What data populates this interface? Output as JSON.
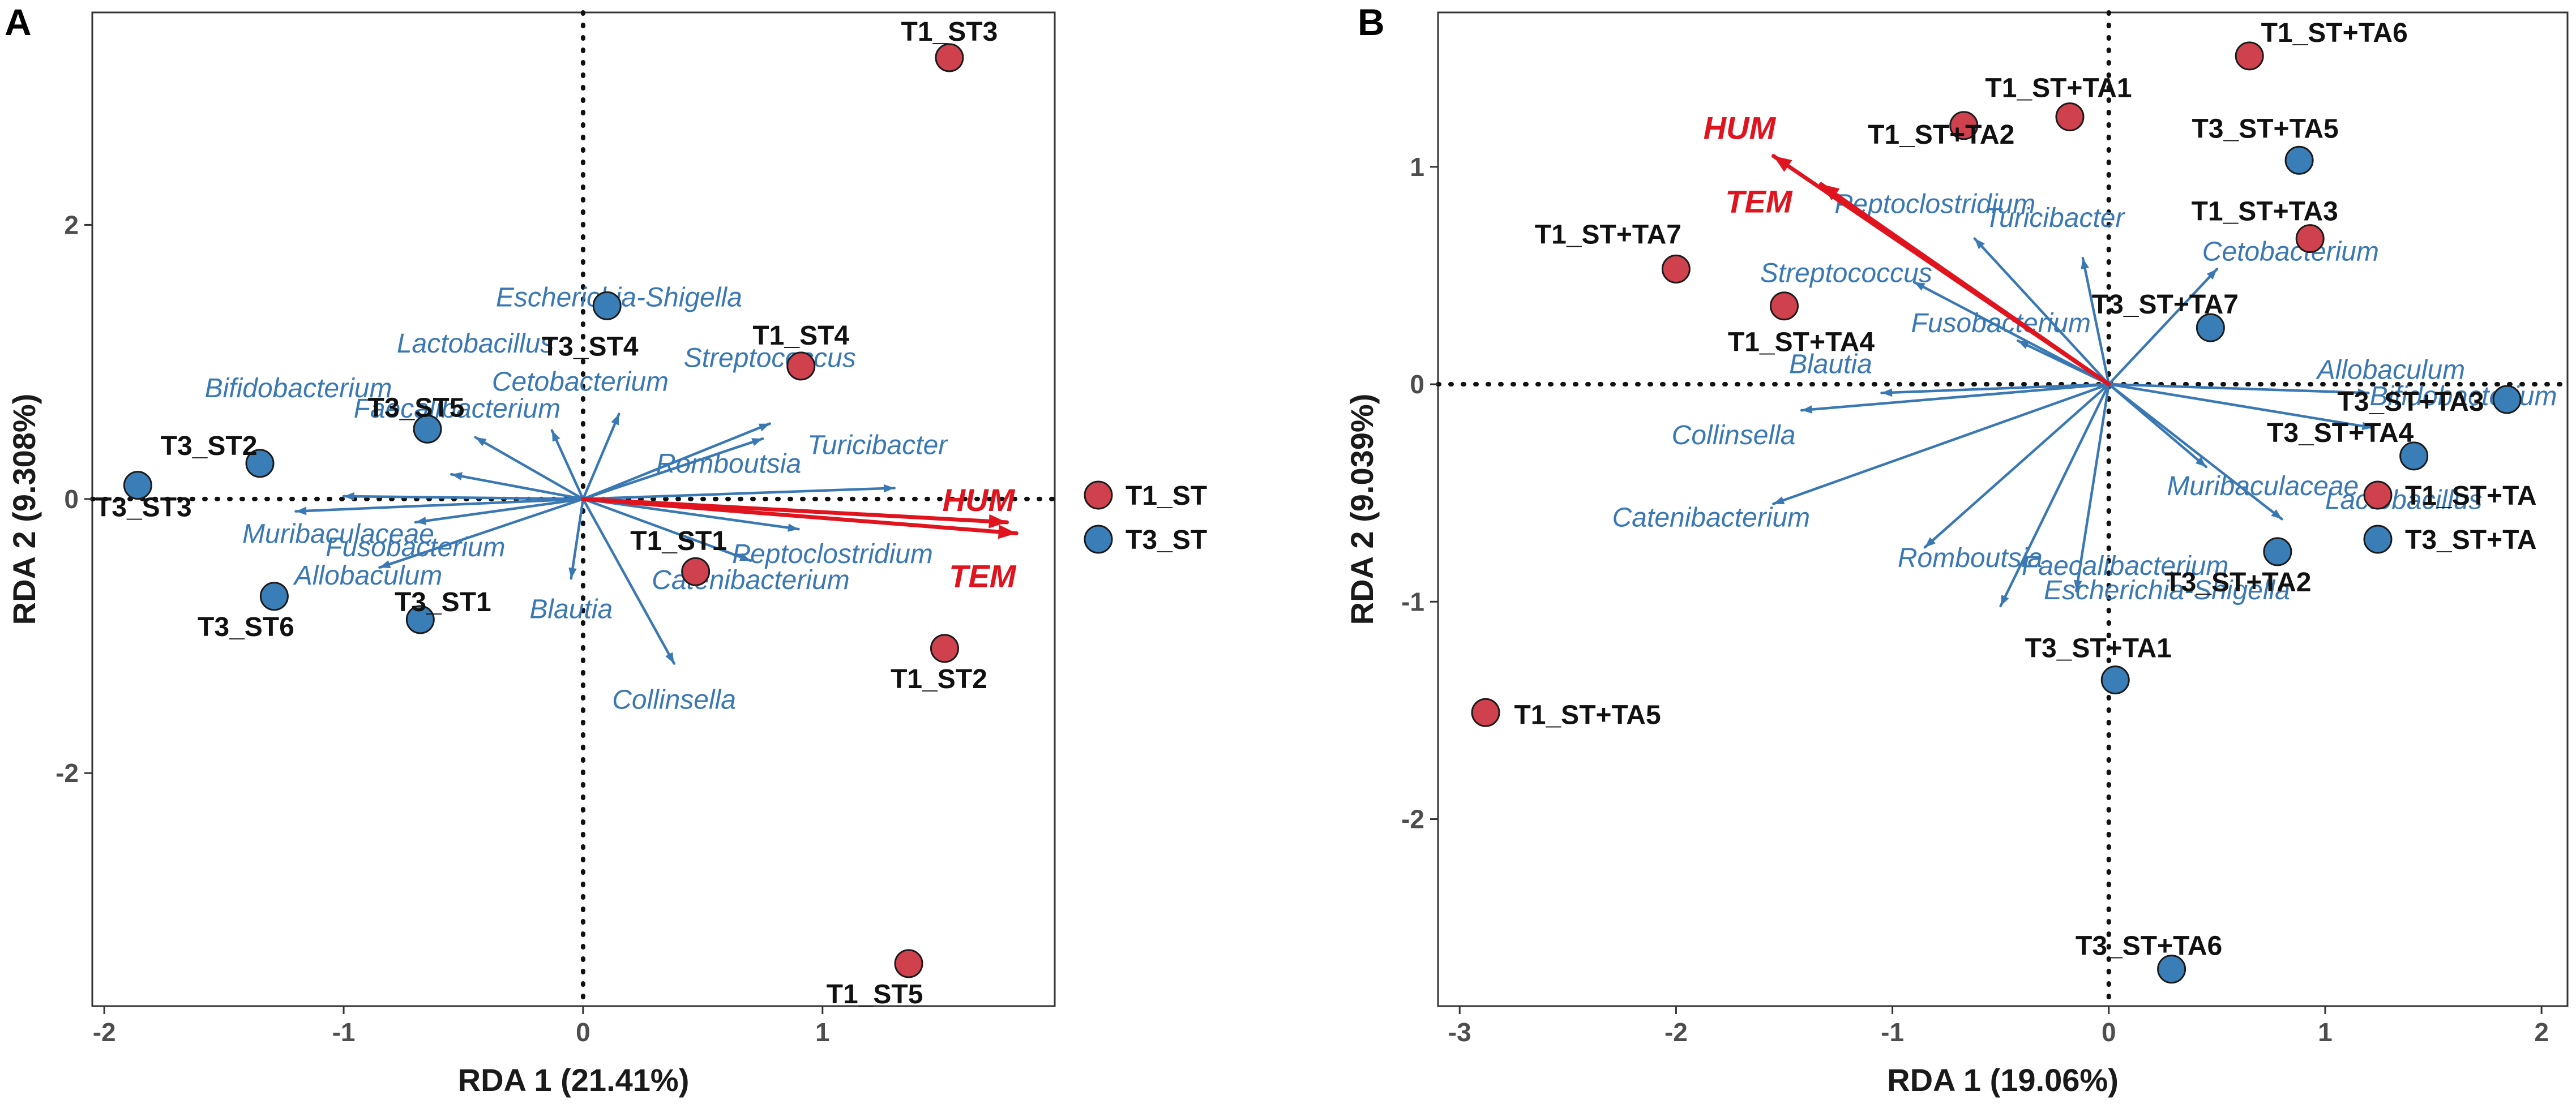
{
  "colors": {
    "t1": "#d0414e",
    "t3": "#3a7eb8",
    "taxa_arrow": "#3a78b3",
    "env_arrow": "#e0141e"
  },
  "chart_data": [
    {
      "type": "scatter",
      "panel": "A",
      "xlabel": "RDA 1 (21.41%)",
      "ylabel": "RDA 2 (9.308%)",
      "xlim": [
        -2.05,
        1.97
      ],
      "ylim": [
        -3.7,
        3.55
      ],
      "xticks": [
        -2,
        -1,
        0,
        1
      ],
      "yticks": [
        -2,
        0,
        2
      ],
      "legend": [
        "T1_ST",
        "T3_ST"
      ],
      "points": [
        {
          "label": "T1_ST3",
          "group": 0,
          "x": 1.53,
          "y": 3.22
        },
        {
          "label": "T1_ST4",
          "group": 0,
          "x": 0.91,
          "y": 0.97
        },
        {
          "label": "T1_ST1",
          "group": 0,
          "x": 0.47,
          "y": -0.53
        },
        {
          "label": "T1_ST2",
          "group": 0,
          "x": 1.51,
          "y": -1.09
        },
        {
          "label": "T1_ST5",
          "group": 0,
          "x": 1.36,
          "y": -3.39
        },
        {
          "label": "T3_ST4",
          "group": 1,
          "x": 0.1,
          "y": 1.41
        },
        {
          "label": "T3_ST5",
          "group": 1,
          "x": -0.65,
          "y": 0.51
        },
        {
          "label": "T3_ST2",
          "group": 1,
          "x": -1.35,
          "y": 0.26
        },
        {
          "label": "T3_ST3",
          "group": 1,
          "x": -1.86,
          "y": 0.1
        },
        {
          "label": "T3_ST6",
          "group": 1,
          "x": -1.29,
          "y": -0.71
        },
        {
          "label": "T3_ST1",
          "group": 1,
          "x": -0.68,
          "y": -0.88
        }
      ],
      "taxa": [
        {
          "label": "Bifidobacterium",
          "x": -1.0,
          "y": 0.02
        },
        {
          "label": "Lactobacillus",
          "x": -0.45,
          "y": 0.45
        },
        {
          "label": "Faecalibacterium",
          "x": -0.55,
          "y": 0.18
        },
        {
          "label": "Cetobacterium",
          "x": -0.13,
          "y": 0.5
        },
        {
          "label": "Escherichia-Shigella",
          "x": 0.15,
          "y": 0.62
        },
        {
          "label": "Streptococcus",
          "x": 0.78,
          "y": 0.55
        },
        {
          "label": "Romboutsia",
          "x": 0.75,
          "y": 0.44
        },
        {
          "label": "Turicibacter",
          "x": 1.3,
          "y": 0.08
        },
        {
          "label": "Peptoclostridium",
          "x": 0.9,
          "y": -0.22
        },
        {
          "label": "Catenibacterium",
          "x": 0.7,
          "y": -0.45
        },
        {
          "label": "Muribaculaceae",
          "x": -1.2,
          "y": -0.09
        },
        {
          "label": "Fusobacterium",
          "x": -0.7,
          "y": -0.17
        },
        {
          "label": "Allobaculum",
          "x": -0.85,
          "y": -0.5
        },
        {
          "label": "Blautia",
          "x": -0.05,
          "y": -0.58
        },
        {
          "label": "Collinsella",
          "x": 0.38,
          "y": -1.2
        }
      ],
      "env": [
        {
          "label": "HUM",
          "x": 1.77,
          "y": -0.17
        },
        {
          "label": "TEM",
          "x": 1.81,
          "y": -0.25
        }
      ]
    },
    {
      "type": "scatter",
      "panel": "B",
      "xlabel": "RDA 1 (19.06%)",
      "ylabel": "RDA 2 (9.039%)",
      "xlim": [
        -3.1,
        2.12
      ],
      "ylim": [
        -2.86,
        1.71
      ],
      "xticks": [
        -3,
        -2,
        -1,
        0,
        1,
        2
      ],
      "yticks": [
        -2,
        -1,
        0,
        1
      ],
      "legend": [
        "T1_ST+TA",
        "T3_ST+TA"
      ],
      "points": [
        {
          "label": "T1_ST+TA6",
          "group": 0,
          "x": 0.65,
          "y": 1.51
        },
        {
          "label": "T1_ST+TA1",
          "group": 0,
          "x": -0.18,
          "y": 1.23
        },
        {
          "label": "T1_ST+TA2",
          "group": 0,
          "x": -0.67,
          "y": 1.19
        },
        {
          "label": "T1_ST+TA3",
          "group": 0,
          "x": 0.93,
          "y": 0.67
        },
        {
          "label": "T1_ST+TA7",
          "group": 0,
          "x": -2.0,
          "y": 0.53
        },
        {
          "label": "T1_ST+TA4",
          "group": 0,
          "x": -1.5,
          "y": 0.36
        },
        {
          "label": "T1_ST+TA5",
          "group": 0,
          "x": -2.88,
          "y": -1.51
        },
        {
          "label": "T3_ST+TA5",
          "group": 1,
          "x": 0.88,
          "y": 1.03
        },
        {
          "label": "T3_ST+TA7",
          "group": 1,
          "x": 0.47,
          "y": 0.26
        },
        {
          "label": "T3_ST+TA3",
          "group": 1,
          "x": 1.84,
          "y": -0.07
        },
        {
          "label": "T3_ST+TA4",
          "group": 1,
          "x": 1.41,
          "y": -0.33
        },
        {
          "label": "T3_ST+TA2",
          "group": 1,
          "x": 0.78,
          "y": -0.77
        },
        {
          "label": "T3_ST+TA1",
          "group": 1,
          "x": 0.03,
          "y": -1.36
        },
        {
          "label": "T3_ST+TA6",
          "group": 1,
          "x": 0.29,
          "y": -2.69
        }
      ],
      "taxa": [
        {
          "label": "Peptoclostridium",
          "x": -0.62,
          "y": 0.67
        },
        {
          "label": "Streptococcus",
          "x": -0.9,
          "y": 0.47
        },
        {
          "label": "Turicibacter",
          "x": -0.12,
          "y": 0.58
        },
        {
          "label": "Cetobacterium",
          "x": 0.5,
          "y": 0.53
        },
        {
          "label": "Fusobacterium",
          "x": -0.42,
          "y": 0.2
        },
        {
          "label": "Blautia",
          "x": -1.05,
          "y": -0.04
        },
        {
          "label": "Allobaculum",
          "x": 1.2,
          "y": -0.04
        },
        {
          "label": "Bifidobacterium",
          "x": 1.22,
          "y": -0.2
        },
        {
          "label": "Collinsella",
          "x": -1.42,
          "y": -0.12
        },
        {
          "label": "Catenibacterium",
          "x": -1.55,
          "y": -0.55
        },
        {
          "label": "Muribaculaceae",
          "x": 0.45,
          "y": -0.38
        },
        {
          "label": "Romboutsia",
          "x": -0.85,
          "y": -0.75
        },
        {
          "label": "Escherichia-Shigella",
          "x": -0.15,
          "y": -0.95
        },
        {
          "label": "Lactobacillus",
          "x": 0.8,
          "y": -0.62
        },
        {
          "label": "Faecalibacterium",
          "x": -0.5,
          "y": -1.02
        }
      ],
      "env": [
        {
          "label": "HUM",
          "x": -1.55,
          "y": 1.05
        },
        {
          "label": "TEM",
          "x": -1.33,
          "y": 0.92
        }
      ]
    }
  ]
}
